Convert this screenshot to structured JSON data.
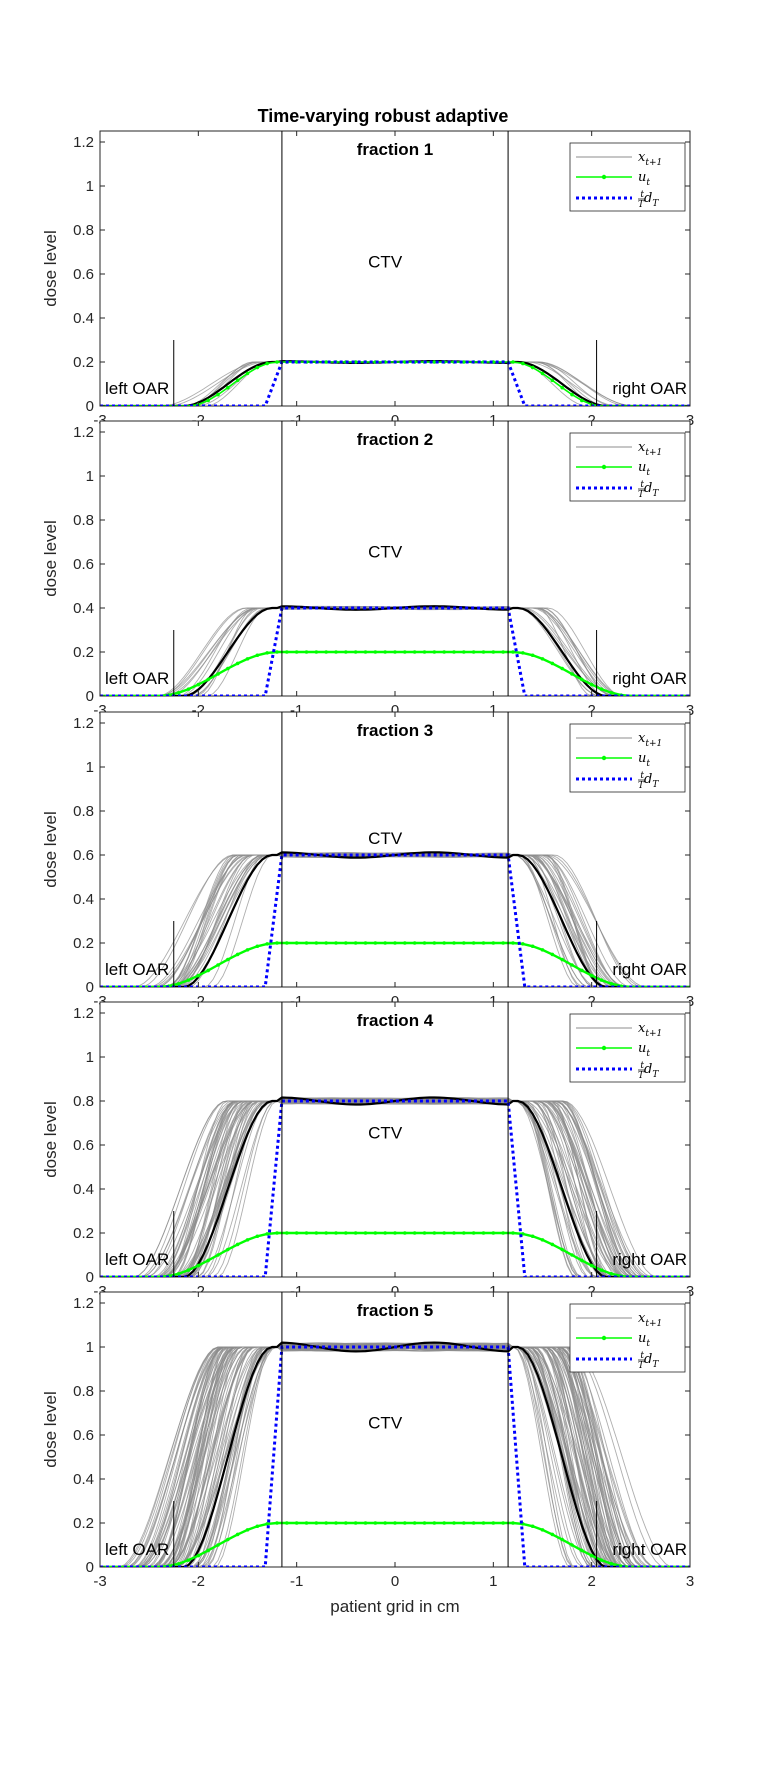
{
  "figure_title": "Time-varying robust adaptive",
  "chart_data": [
    {
      "type": "line",
      "title": "fraction 1",
      "xlabel": "",
      "ylabel": "dose level",
      "xlim": [
        -3,
        3
      ],
      "ylim": [
        0,
        1.25
      ],
      "xticks": [
        -3,
        -2,
        -1,
        0,
        1,
        2,
        3
      ],
      "xtick_labels": [
        "-3",
        "-2",
        "-1",
        "0",
        "1",
        "2",
        "3"
      ],
      "yticks": [
        0,
        0.2,
        0.4,
        0.6,
        0.8,
        1,
        1.2
      ],
      "ytick_labels": [
        "0",
        "0.2",
        "0.4",
        "0.6",
        "0.8",
        "1",
        "1.2"
      ],
      "regions": {
        "left_oar": "left OAR",
        "ctv": "CTV",
        "right_oar": "right OAR"
      },
      "region_boundaries": [
        -2.25,
        -1.15,
        1.15,
        2.05
      ],
      "legend": {
        "position": "top-right",
        "entries": [
          "x_{t+1}",
          "u_t",
          "(t/T) d_T"
        ]
      },
      "series": [
        {
          "name": "x_{t+1}",
          "kind": "ensemble",
          "level": 0.2,
          "edge_inner": -1.15,
          "edge_outer": -2.1,
          "edge_inner_r": 1.15,
          "edge_outer_r": 2.1
        },
        {
          "name": "u_t",
          "kind": "control",
          "level": 0.2
        },
        {
          "name": "(t/T) d_T",
          "kind": "target",
          "level": 0.2
        }
      ]
    },
    {
      "type": "line",
      "title": "fraction 2",
      "xlabel": "",
      "ylabel": "dose level",
      "xlim": [
        -3,
        3
      ],
      "ylim": [
        0,
        1.25
      ],
      "xticks": [
        -3,
        -2,
        -1,
        0,
        1,
        2,
        3
      ],
      "xtick_labels": [
        "-3",
        "-2",
        "-1",
        "0",
        "1",
        "2",
        "3"
      ],
      "yticks": [
        0,
        0.2,
        0.4,
        0.6,
        0.8,
        1,
        1.2
      ],
      "ytick_labels": [
        "0",
        "0.2",
        "0.4",
        "0.6",
        "0.8",
        "1",
        "1.2"
      ],
      "regions": {
        "left_oar": "left OAR",
        "ctv": "CTV",
        "right_oar": "right OAR"
      },
      "region_boundaries": [
        -2.25,
        -1.15,
        1.15,
        2.05
      ],
      "legend": {
        "position": "top-right",
        "entries": [
          "x_{t+1}",
          "u_t",
          "(t/T) d_T"
        ]
      },
      "series": [
        {
          "name": "x_{t+1}",
          "kind": "ensemble",
          "level": 0.4
        },
        {
          "name": "u_t",
          "kind": "control",
          "level": 0.2
        },
        {
          "name": "(t/T) d_T",
          "kind": "target",
          "level": 0.4
        }
      ]
    },
    {
      "type": "line",
      "title": "fraction 3",
      "xlabel": "",
      "ylabel": "dose level",
      "xlim": [
        -3,
        3
      ],
      "ylim": [
        0,
        1.25
      ],
      "xticks": [
        -3,
        -2,
        -1,
        0,
        1,
        2,
        3
      ],
      "xtick_labels": [
        "-3",
        "-2",
        "-1",
        "0",
        "1",
        "2",
        "3"
      ],
      "yticks": [
        0,
        0.2,
        0.4,
        0.6,
        0.8,
        1,
        1.2
      ],
      "ytick_labels": [
        "0",
        "0.2",
        "0.4",
        "0.6",
        "0.8",
        "1",
        "1.2"
      ],
      "regions": {
        "left_oar": "left OAR",
        "ctv": "CTV",
        "right_oar": "right OAR"
      },
      "region_boundaries": [
        -2.25,
        -1.15,
        1.15,
        2.05
      ],
      "legend": {
        "position": "top-right",
        "entries": [
          "x_{t+1}",
          "u_t",
          "(t/T) d_T"
        ]
      },
      "series": [
        {
          "name": "x_{t+1}",
          "kind": "ensemble",
          "level": 0.6
        },
        {
          "name": "u_t",
          "kind": "control",
          "level": 0.2
        },
        {
          "name": "(t/T) d_T",
          "kind": "target",
          "level": 0.6
        }
      ]
    },
    {
      "type": "line",
      "title": "fraction 4",
      "xlabel": "",
      "ylabel": "dose level",
      "xlim": [
        -3,
        3
      ],
      "ylim": [
        0,
        1.25
      ],
      "xticks": [
        -3,
        -2,
        -1,
        0,
        1,
        2,
        3
      ],
      "xtick_labels": [
        "-3",
        "-2",
        "-1",
        "0",
        "1",
        "2",
        "3"
      ],
      "yticks": [
        0,
        0.2,
        0.4,
        0.6,
        0.8,
        1,
        1.2
      ],
      "ytick_labels": [
        "0",
        "0.2",
        "0.4",
        "0.6",
        "0.8",
        "1",
        "1.2"
      ],
      "regions": {
        "left_oar": "left OAR",
        "ctv": "CTV",
        "right_oar": "right OAR"
      },
      "region_boundaries": [
        -2.25,
        -1.15,
        1.15,
        2.05
      ],
      "legend": {
        "position": "top-right",
        "entries": [
          "x_{t+1}",
          "u_t",
          "(t/T) d_T"
        ]
      },
      "series": [
        {
          "name": "x_{t+1}",
          "kind": "ensemble",
          "level": 0.8
        },
        {
          "name": "u_t",
          "kind": "control",
          "level": 0.2
        },
        {
          "name": "(t/T) d_T",
          "kind": "target",
          "level": 0.8
        }
      ]
    },
    {
      "type": "line",
      "title": "fraction 5",
      "xlabel": "patient grid in cm",
      "ylabel": "dose level",
      "xlim": [
        -3,
        3
      ],
      "ylim": [
        0,
        1.25
      ],
      "xticks": [
        -3,
        -2,
        -1,
        0,
        1,
        2,
        3
      ],
      "xtick_labels": [
        "-3",
        "-2",
        "-1",
        "0",
        "1",
        "2",
        "3"
      ],
      "yticks": [
        0,
        0.2,
        0.4,
        0.6,
        0.8,
        1,
        1.2
      ],
      "ytick_labels": [
        "0",
        "0.2",
        "0.4",
        "0.6",
        "0.8",
        "1",
        "1.2"
      ],
      "regions": {
        "left_oar": "left OAR",
        "ctv": "CTV",
        "right_oar": "right OAR"
      },
      "region_boundaries": [
        -2.25,
        -1.15,
        1.15,
        2.05
      ],
      "legend": {
        "position": "top-right",
        "entries": [
          "x_{t+1}",
          "u_t",
          "(t/T) d_T"
        ]
      },
      "series": [
        {
          "name": "x_{t+1}",
          "kind": "ensemble",
          "level": 1.0
        },
        {
          "name": "u_t",
          "kind": "control",
          "level": 0.2
        },
        {
          "name": "(t/T) d_T",
          "kind": "target",
          "level": 1.0
        }
      ]
    }
  ],
  "colors": {
    "ensemble": "#8c8c8c",
    "ensemble_mean": "#000000",
    "control": "#00ff00",
    "target": "#0000ff",
    "axis": "#262626",
    "boundary": "#000000"
  }
}
